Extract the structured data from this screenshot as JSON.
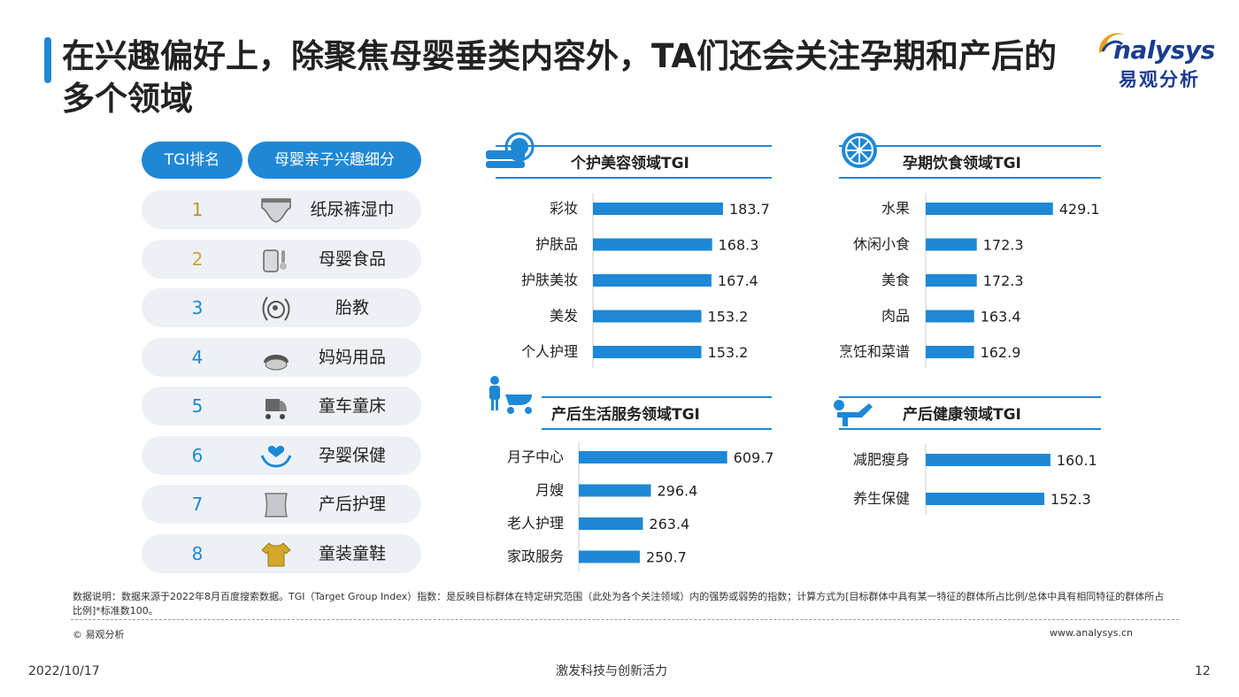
{
  "title": "在兴趣偏好上，除聚焦母婴垂类内容外，TA们还会关注孕期和产后的多个领域",
  "logo": {
    "en": "nalysys",
    "cn": "易观分析"
  },
  "table": {
    "header_rank": "TGI排名",
    "header_category": "母婴亲子兴趣细分",
    "rows": [
      {
        "rank": "1",
        "label": "纸尿裤湿巾",
        "icon": "diaper-icon",
        "color": "#b8972e"
      },
      {
        "rank": "2",
        "label": "母婴食品",
        "icon": "baby-food-icon",
        "color": "#c9a63c"
      },
      {
        "rank": "3",
        "label": "胎教",
        "icon": "pregnancy-icon",
        "color": "#1e88d6"
      },
      {
        "rank": "4",
        "label": "妈妈用品",
        "icon": "mom-product-icon",
        "color": "#1e88d6"
      },
      {
        "rank": "5",
        "label": "童车童床",
        "icon": "stroller-icon",
        "color": "#1e88d6"
      },
      {
        "rank": "6",
        "label": "孕婴保健",
        "icon": "care-hands-icon",
        "color": "#1e88d6"
      },
      {
        "rank": "7",
        "label": "产后护理",
        "icon": "waist-belt-icon",
        "color": "#1e88d6"
      },
      {
        "rank": "8",
        "label": "童装童鞋",
        "icon": "kids-clothes-icon",
        "color": "#1e88d6"
      }
    ]
  },
  "chart_data": [
    {
      "type": "bar",
      "title": "个护美容领域TGI",
      "icon": "beauty-icon",
      "categories": [
        "彩妆",
        "护肤品",
        "护肤美妆",
        "美发",
        "个人护理"
      ],
      "values": [
        183.7,
        168.3,
        167.4,
        153.2,
        153.2
      ]
    },
    {
      "type": "bar",
      "title": "孕期饮食领域TGI",
      "icon": "orange-slice-icon",
      "categories": [
        "水果",
        "休闲小食",
        "美食",
        "肉品",
        "烹饪和菜谱"
      ],
      "values": [
        429.1,
        172.3,
        172.3,
        163.4,
        162.9
      ]
    },
    {
      "type": "bar",
      "title": "产后生活服务领域TGI",
      "icon": "family-stroller-icon",
      "categories": [
        "月子中心",
        "月嫂",
        "老人护理",
        "家政服务"
      ],
      "values": [
        609.7,
        296.4,
        263.4,
        250.7
      ]
    },
    {
      "type": "bar",
      "title": "产后健康领域TGI",
      "icon": "exercise-icon",
      "categories": [
        "减肥瘦身",
        "养生保健"
      ],
      "values": [
        160.1,
        152.3
      ]
    }
  ],
  "colors": {
    "accent": "#1e88d6"
  },
  "footer": {
    "note": "数据说明：数据来源于2022年8月百度搜索数据。TGI（Target Group Index）指数：是反映目标群体在特定研究范围（此处为各个关注领域）内的强势或弱势的指数；计算方式为[目标群体中具有某一特征的群体所占比例/总体中具有相同特征的群体所占比例]*标准数100。",
    "copyright": "© 易观分析",
    "site": "www.analysys.cn",
    "date": "2022/10/17",
    "slogan": "激发科技与创新活力",
    "page": "12"
  }
}
